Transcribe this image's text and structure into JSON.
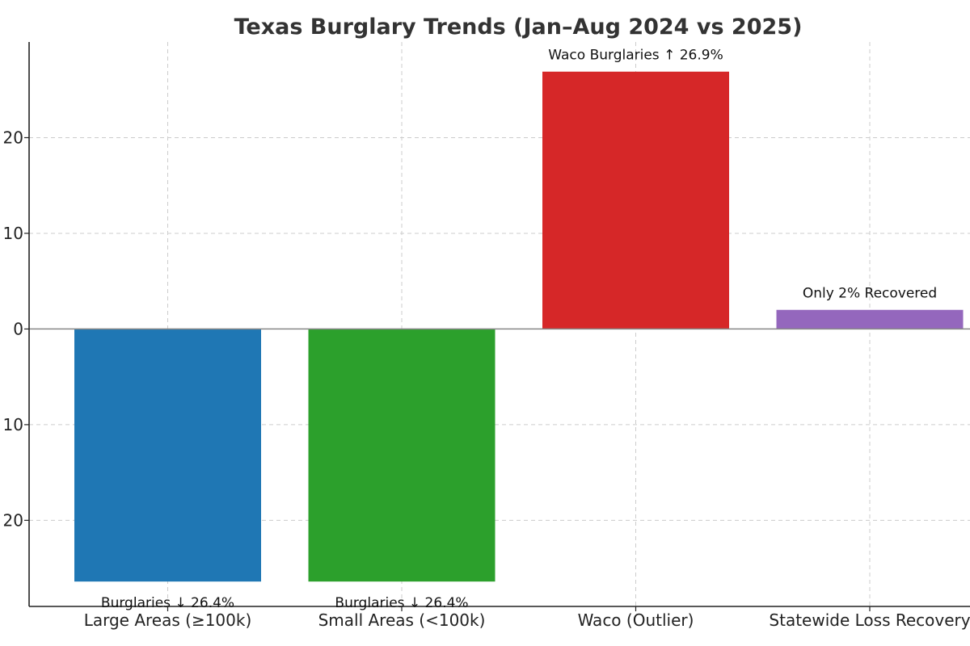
{
  "chart_data": {
    "type": "bar",
    "title": "Texas Burglary Trends (Jan–Aug 2024 vs 2025)",
    "xlabel": "",
    "ylabel": "",
    "categories": [
      "Large Areas (≥100k)",
      "Small Areas (<100k)",
      "Waco (Outlier)",
      "Statewide Loss Recovery"
    ],
    "values": [
      -26.4,
      -26.4,
      26.9,
      2
    ],
    "annotations": [
      "Burglaries ↓ 26.4%",
      "Burglaries ↓ 26.4%",
      "Waco Burglaries ↑ 26.9%",
      "Only 2% Recovered"
    ],
    "colors": [
      "#1f77b4",
      "#2ca02c",
      "#d62728",
      "#9467bd"
    ],
    "ylim": [
      -29,
      30
    ],
    "yticks": [
      -20,
      -10,
      0,
      10,
      20
    ],
    "ytick_labels": [
      "20",
      "10",
      "0",
      "10",
      "20"
    ],
    "grid": true,
    "legend": "none"
  }
}
